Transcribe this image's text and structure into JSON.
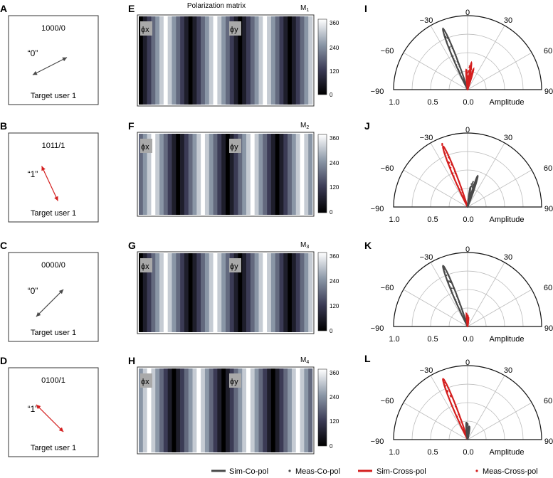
{
  "figure": {
    "left_panels": [
      {
        "letter": "A",
        "code": "1000/0",
        "symbol": "“0”",
        "target": "Target user 1",
        "arrow_color": "#4a4a4a",
        "arrow_angle_deg": 27
      },
      {
        "letter": "B",
        "code": "1011/1",
        "symbol": "“1”",
        "target": "Target user 1",
        "arrow_color": "#d41f1f",
        "arrow_angle_deg": -65
      },
      {
        "letter": "C",
        "code": "0000/0",
        "symbol": "“0”",
        "target": "Target user 1",
        "arrow_color": "#4a4a4a",
        "arrow_angle_deg": 45
      },
      {
        "letter": "D",
        "code": "0100/1",
        "symbol": "“1”",
        "target": "Target user 1",
        "arrow_color": "#d41f1f",
        "arrow_angle_deg": -45
      }
    ],
    "matrix_panels": [
      {
        "letter": "E",
        "title": "Polarization matrix",
        "m_base": "M",
        "m_sub": "1",
        "phi_x_label": "ϕx",
        "phi_y_label": "ϕy",
        "stripe_values": [
          0,
          60,
          120,
          180,
          240,
          300,
          360,
          300,
          240,
          180,
          120,
          60,
          0,
          60,
          120,
          180,
          240,
          300,
          360,
          300,
          240,
          180,
          120,
          60,
          0,
          60,
          120,
          180,
          240,
          300,
          360,
          300,
          240,
          180,
          120,
          60,
          0,
          60,
          120,
          180,
          240,
          300
        ]
      },
      {
        "letter": "F",
        "title": "",
        "m_base": "M",
        "m_sub": "2",
        "phi_x_label": "ϕx",
        "phi_y_label": "ϕy",
        "stripe_values": [
          180,
          240,
          300,
          360,
          300,
          240,
          180,
          120,
          60,
          0,
          60,
          120,
          180,
          240,
          300,
          360,
          300,
          240,
          180,
          120,
          60,
          0,
          60,
          120,
          180,
          240,
          300,
          360,
          300,
          240,
          180,
          120,
          60,
          0,
          60,
          120,
          180,
          240,
          300,
          360,
          300,
          240
        ]
      },
      {
        "letter": "G",
        "title": "",
        "m_base": "M",
        "m_sub": "3",
        "phi_x_label": "ϕx",
        "phi_y_label": "ϕy",
        "stripe_values": [
          0,
          60,
          120,
          180,
          240,
          300,
          360,
          300,
          240,
          180,
          120,
          60,
          0,
          60,
          120,
          180,
          240,
          300,
          360,
          300,
          240,
          180,
          120,
          60,
          0,
          60,
          120,
          180,
          240,
          300,
          360,
          300,
          240,
          180,
          120,
          60,
          0,
          60,
          120,
          180,
          240,
          300
        ]
      },
      {
        "letter": "H",
        "title": "",
        "m_base": "M",
        "m_sub": "4",
        "phi_x_label": "ϕx",
        "phi_y_label": "ϕy",
        "stripe_values": [
          240,
          300,
          360,
          300,
          240,
          180,
          120,
          60,
          0,
          60,
          120,
          180,
          240,
          300,
          360,
          300,
          240,
          180,
          120,
          60,
          0,
          60,
          120,
          180,
          240,
          300,
          360,
          300,
          240,
          180,
          120,
          60,
          0,
          60,
          120,
          180,
          240,
          300,
          360,
          300,
          240,
          180
        ]
      }
    ],
    "colorbar_ticks": [
      "360",
      "240",
      "120",
      "0"
    ],
    "polar_panels": [
      {
        "letter": "I",
        "dominant": "co"
      },
      {
        "letter": "J",
        "dominant": "cross"
      },
      {
        "letter": "K",
        "dominant": "co"
      },
      {
        "letter": "L",
        "dominant": "cross"
      }
    ],
    "polar_angle_labels": {
      "left90": "−90",
      "left60": "−60",
      "left30": "−30",
      "zero": "0",
      "right30": "30",
      "right60": "60",
      "right90": "90"
    },
    "polar_radial_labels": [
      "1.0",
      "0.5",
      "0.0"
    ],
    "polar_axis_title": "Amplitude",
    "legend": [
      {
        "label": "Sim-Co-pol",
        "kind": "line",
        "color": "#4a4a4a"
      },
      {
        "label": "Meas-Co-pol",
        "kind": "dot",
        "color": "#4a4a4a"
      },
      {
        "label": "Sim-Cross-pol",
        "kind": "line",
        "color": "#d41f1f"
      },
      {
        "label": "Meas-Cross-pol",
        "kind": "dot",
        "color": "#d41f1f"
      }
    ],
    "colors": {
      "co": "#4a4a4a",
      "cross": "#d41f1f",
      "grid": "#bdbdbd"
    }
  }
}
